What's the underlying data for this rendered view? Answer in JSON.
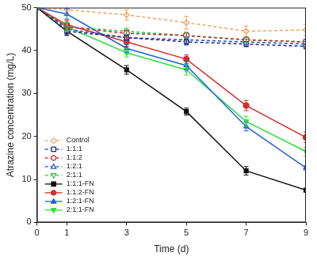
{
  "chart_data": {
    "type": "line",
    "x_label": "Time (d)",
    "y_label": "Atrazine concentration (mg/L)",
    "x": [
      0,
      1,
      3,
      5,
      7,
      9
    ],
    "xlim": [
      0,
      9
    ],
    "xticks": [
      0,
      1,
      3,
      5,
      7,
      9
    ],
    "ylim": [
      0,
      50
    ],
    "yticks": [
      0,
      10,
      20,
      30,
      40,
      50
    ],
    "grid": false,
    "legend": "lower left",
    "series": [
      {
        "name": "Control",
        "color": "#f0a35c",
        "line_style": "dashed",
        "marker": "diamond-open",
        "values": [
          50,
          49.5,
          48.3,
          46.5,
          44.5,
          44.8
        ],
        "errors": [
          0.5,
          1.0,
          1.2,
          1.5,
          1.2,
          1.3
        ]
      },
      {
        "name": "1:1:1",
        "color": "#1c2a6e",
        "line_style": "dashed",
        "marker": "square-open",
        "values": [
          50,
          44.5,
          43.0,
          42.0,
          41.5,
          41.0
        ],
        "errors": [
          0.4,
          0.8,
          0.6,
          0.7,
          0.6,
          0.6
        ]
      },
      {
        "name": "1:1:2",
        "color": "#c0282a",
        "line_style": "dashed",
        "marker": "circle-open",
        "values": [
          50,
          45.5,
          44.0,
          43.5,
          42.5,
          42.0
        ],
        "errors": [
          0.4,
          0.8,
          0.7,
          0.7,
          0.6,
          0.6
        ]
      },
      {
        "name": "1:2:1",
        "color": "#2050d0",
        "line_style": "dashed",
        "marker": "triangle-open",
        "values": [
          50,
          45.0,
          43.0,
          42.5,
          42.0,
          41.5
        ],
        "errors": [
          0.4,
          0.8,
          0.7,
          0.7,
          0.6,
          0.6
        ]
      },
      {
        "name": "2:1:1",
        "color": "#30c040",
        "line_style": "dashed",
        "marker": "triangle-down-open",
        "values": [
          50,
          45.5,
          44.5,
          43.5,
          42.5,
          42.0
        ],
        "errors": [
          0.4,
          0.8,
          0.7,
          0.7,
          0.6,
          0.6
        ]
      },
      {
        "name": "1:1:1-FN",
        "color": "#111111",
        "line_style": "solid",
        "marker": "square-filled",
        "values": [
          50,
          44.5,
          35.5,
          25.8,
          12.0,
          7.5
        ],
        "errors": [
          0.5,
          1.0,
          1.0,
          0.8,
          1.0,
          0.4
        ]
      },
      {
        "name": "1:1:2-FN",
        "color": "#d0302a",
        "line_style": "solid",
        "marker": "circle-filled",
        "values": [
          50,
          46.0,
          42.0,
          38.0,
          27.2,
          19.8
        ],
        "errors": [
          0.5,
          1.0,
          1.0,
          1.0,
          1.2,
          1.2
        ]
      },
      {
        "name": "1:2:1-FN",
        "color": "#2060e0",
        "line_style": "solid",
        "marker": "triangle-filled",
        "values": [
          50,
          48.5,
          40.5,
          36.5,
          22.3,
          12.7
        ],
        "errors": [
          0.5,
          1.2,
          1.0,
          1.0,
          1.0,
          0.5
        ]
      },
      {
        "name": "2:1:1-FN",
        "color": "#30e040",
        "line_style": "solid",
        "marker": "triangle-down-filled",
        "values": [
          50,
          45.5,
          39.5,
          35.5,
          23.5,
          16.5
        ],
        "errors": [
          0.5,
          1.0,
          1.0,
          1.2,
          1.2,
          1.0
        ]
      }
    ]
  }
}
